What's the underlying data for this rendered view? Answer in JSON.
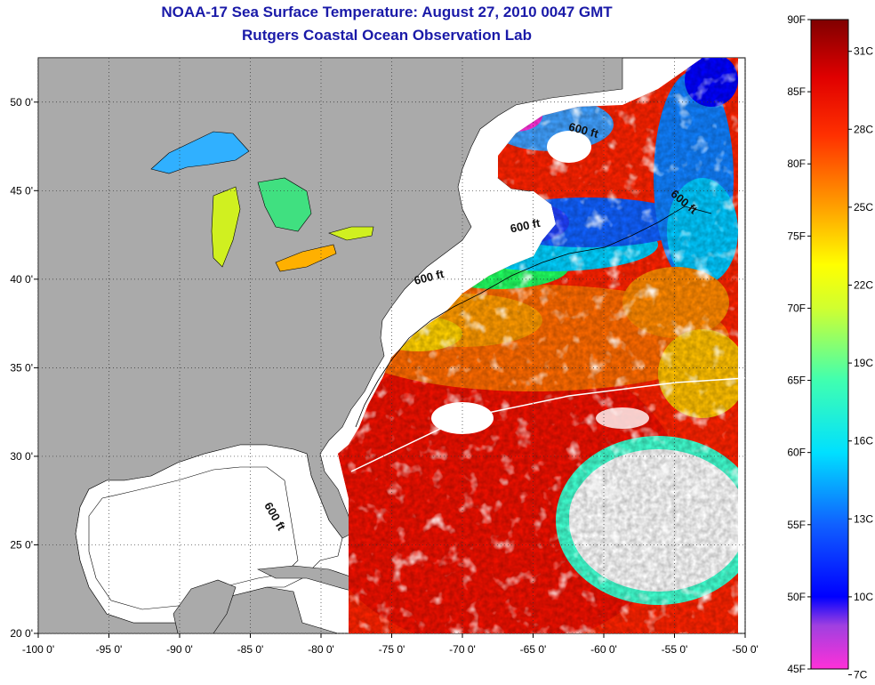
{
  "title": "NOAA-17 Sea Surface Temperature:  August 27, 2010 0047 GMT",
  "subtitle": "Rutgers Coastal Ocean Observation Lab",
  "axes": {
    "x_ticks": [
      "-100 0'",
      "-95 0'",
      "-90 0'",
      "-85 0'",
      "-80 0'",
      "-75 0'",
      "-70 0'",
      "-65 0'",
      "-60 0'",
      "-55 0'",
      "-50 0'"
    ],
    "x_values": [
      -100,
      -95,
      -90,
      -85,
      -80,
      -75,
      -70,
      -65,
      -60,
      -55,
      -50
    ],
    "y_ticks": [
      "20 0'",
      "25 0'",
      "30 0'",
      "35 0'",
      "40 0'",
      "45 0'",
      "50 0'"
    ],
    "y_values": [
      20,
      25,
      30,
      35,
      40,
      45,
      50
    ],
    "lon_range": [
      -100,
      -50
    ],
    "lat_range": [
      20,
      52.5
    ],
    "grid": "dotted"
  },
  "contour_labels": [
    {
      "text": "600 ft",
      "lon": -61.5,
      "lat": 48.2,
      "rotate": 15
    },
    {
      "text": "600 ft",
      "lon": -54.5,
      "lat": 44.2,
      "rotate": 40
    },
    {
      "text": "600 ft",
      "lon": -65.5,
      "lat": 42.8,
      "rotate": -12
    },
    {
      "text": "600 ft",
      "lon": -72.3,
      "lat": 39.9,
      "rotate": -14
    },
    {
      "text": "600 ft",
      "lon": -83.5,
      "lat": 26.5,
      "rotate": 60
    }
  ],
  "colorbar": {
    "min_f": 45,
    "max_f": 90,
    "left_labels": [
      "90F",
      "85F",
      "80F",
      "75F",
      "70F",
      "65F",
      "60F",
      "55F",
      "50F",
      "45F"
    ],
    "left_values": [
      90,
      85,
      80,
      75,
      70,
      65,
      60,
      55,
      50,
      45
    ],
    "right_labels": [
      "31C",
      "28C",
      "25C",
      "22C",
      "19C",
      "16C",
      "13C",
      "10C",
      "7C"
    ],
    "right_values_f": [
      87.8,
      82.4,
      77,
      71.6,
      66.2,
      60.8,
      55.4,
      50,
      44.6
    ],
    "stops": [
      {
        "f": 45,
        "color": "#ff30d8"
      },
      {
        "f": 48,
        "color": "#a040e0"
      },
      {
        "f": 50,
        "color": "#0000ff"
      },
      {
        "f": 55,
        "color": "#1060ff"
      },
      {
        "f": 60,
        "color": "#00e0ff"
      },
      {
        "f": 65,
        "color": "#40ffb0"
      },
      {
        "f": 70,
        "color": "#d0ff30"
      },
      {
        "f": 73,
        "color": "#ffff00"
      },
      {
        "f": 77,
        "color": "#ffa000"
      },
      {
        "f": 82,
        "color": "#ff3000"
      },
      {
        "f": 86,
        "color": "#e00000"
      },
      {
        "f": 90,
        "color": "#800000"
      }
    ]
  },
  "colors": {
    "land": "#aaaaaa",
    "no_data": "#ffffff",
    "title": "#1a1aa8"
  }
}
